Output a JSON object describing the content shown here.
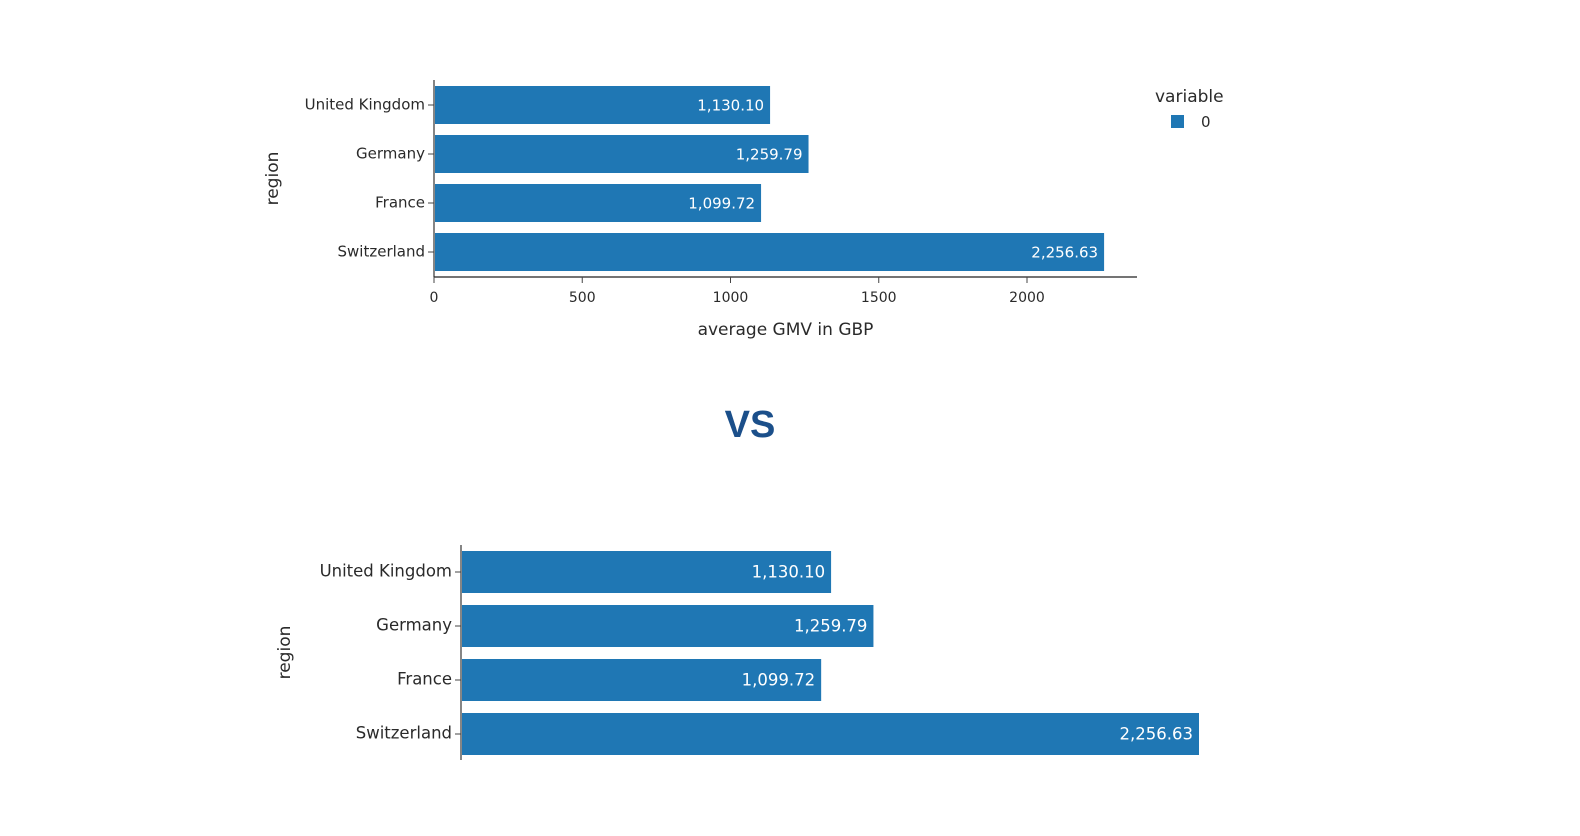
{
  "separator": {
    "text": "VS",
    "color": "#1b4f8a"
  },
  "chart_data": [
    {
      "type": "bar",
      "orientation": "horizontal",
      "categories": [
        "United Kingdom",
        "Germany",
        "France",
        "Switzerland"
      ],
      "series": [
        {
          "name": "0",
          "values": [
            1130.1,
            1259.79,
            1099.72,
            2256.63
          ],
          "color": "#1f77b4"
        }
      ],
      "data_labels": [
        "1,130.10",
        "1,259.79",
        "1,099.72",
        "2,256.63"
      ],
      "xlabel": "average GMV in GBP",
      "ylabel": "region",
      "xlim": [
        0,
        2375
      ],
      "xticks": [
        "0",
        "500",
        "1000",
        "1500",
        "2000"
      ],
      "grid": false,
      "legend": {
        "title": "variable",
        "position": "top-right",
        "entries": [
          "0"
        ]
      }
    },
    {
      "type": "bar",
      "orientation": "horizontal",
      "categories": [
        "United Kingdom",
        "Germany",
        "France",
        "Switzerland"
      ],
      "series": [
        {
          "values": [
            1130.1,
            1259.79,
            1099.72,
            2256.63
          ],
          "color": "#1f77b4"
        }
      ],
      "data_labels": [
        "1,130.10",
        "1,259.79",
        "1,099.72",
        "2,256.63"
      ],
      "ylabel": "region",
      "grid": false
    }
  ]
}
